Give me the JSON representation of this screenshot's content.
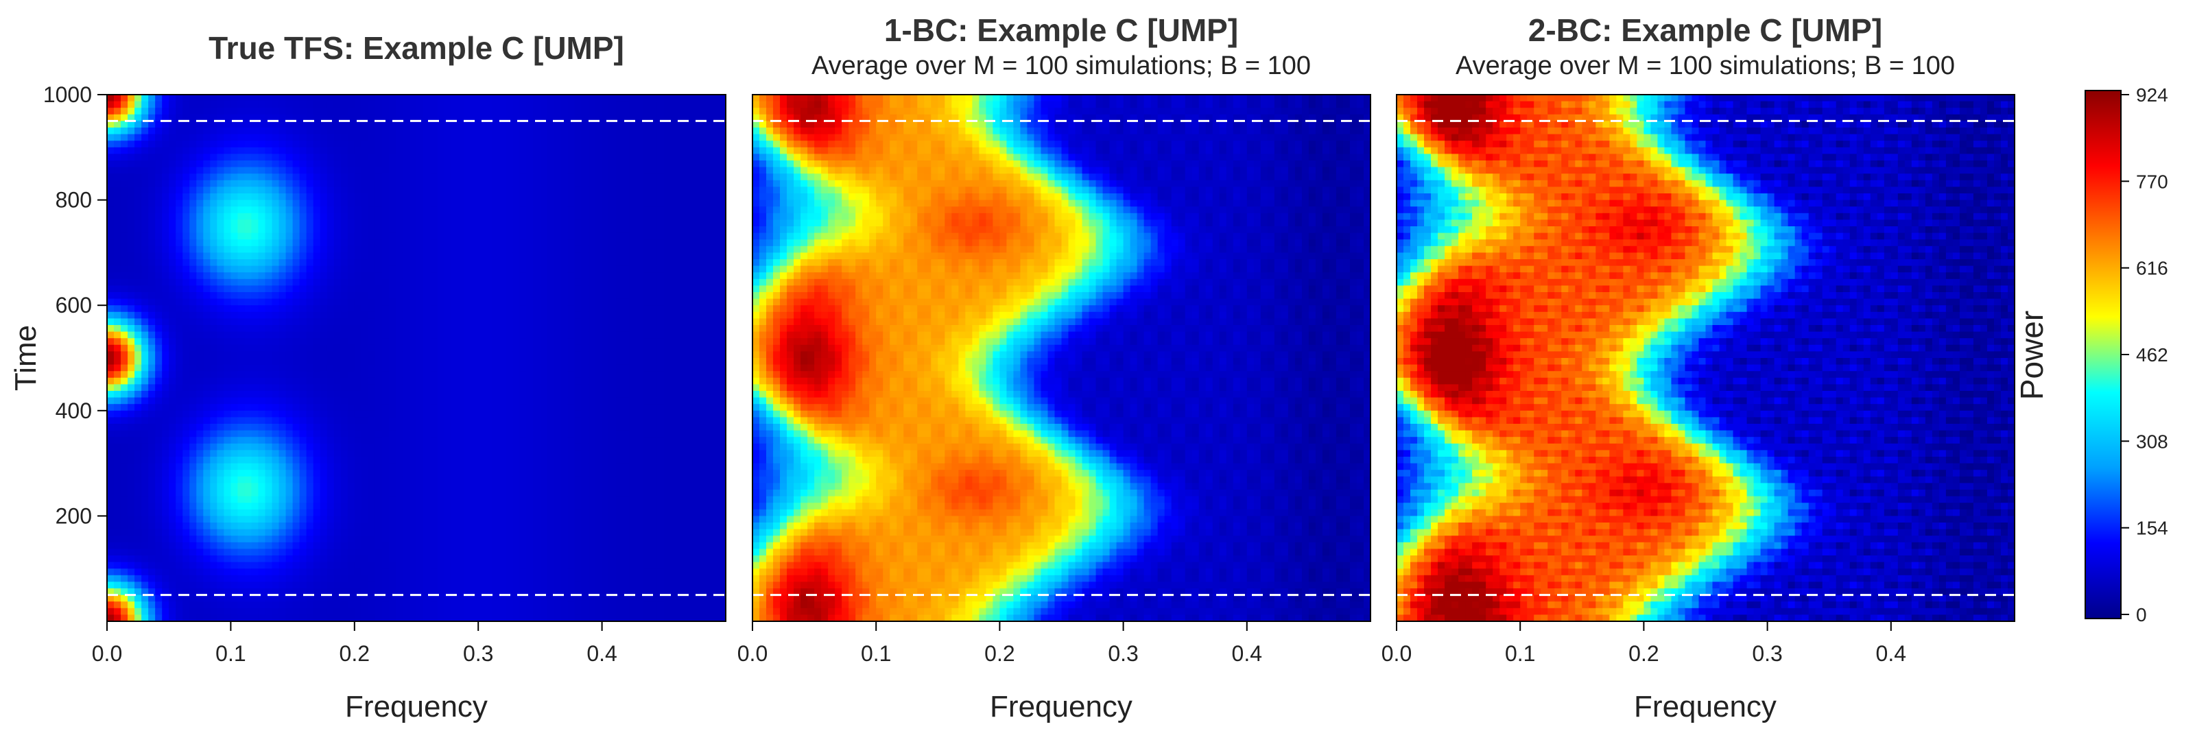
{
  "chart_data": [
    {
      "type": "heatmap",
      "title": "True TFS: Example C   [UMP]",
      "subtitle": "",
      "xlabel": "Frequency",
      "ylabel": "Time",
      "xlim": [
        0,
        0.5
      ],
      "ylim": [
        0,
        1000
      ],
      "xticks": [
        "0.0",
        "0.1",
        "0.2",
        "0.3",
        "0.4"
      ],
      "yticks": [
        "200",
        "400",
        "600",
        "800",
        "1000"
      ],
      "reference_lines_time": [
        50,
        950
      ],
      "peaks": [
        {
          "time": 500,
          "frequency": 0.0,
          "power": 900
        },
        {
          "time": 0,
          "frequency": 0.0,
          "power": 900
        },
        {
          "time": 1000,
          "frequency": 0.0,
          "power": 900
        },
        {
          "time": 250,
          "frequency": 0.11,
          "power": 330
        },
        {
          "time": 750,
          "frequency": 0.11,
          "power": 330
        }
      ]
    },
    {
      "type": "heatmap",
      "title": "1-BC: Example C   [UMP]",
      "subtitle": "Average over M = 100 simulations;  B = 100",
      "xlabel": "Frequency",
      "ylabel": "",
      "xlim": [
        0,
        0.5
      ],
      "ylim": [
        0,
        1000
      ],
      "xticks": [
        "0.0",
        "0.1",
        "0.2",
        "0.3",
        "0.4"
      ],
      "yticks": [],
      "reference_lines_time": [
        50,
        950
      ],
      "peaks": [
        {
          "time": 500,
          "frequency": 0.05,
          "power": 720
        },
        {
          "time": 250,
          "frequency": 0.18,
          "power": 680
        },
        {
          "time": 750,
          "frequency": 0.18,
          "power": 680
        },
        {
          "time": 30,
          "frequency": 0.05,
          "power": 760
        },
        {
          "time": 970,
          "frequency": 0.05,
          "power": 740
        }
      ]
    },
    {
      "type": "heatmap",
      "title": "2-BC: Example C   [UMP]",
      "subtitle": "Average over M = 100 simulations;  B = 100",
      "xlabel": "Frequency",
      "ylabel": "",
      "xlim": [
        0,
        0.5
      ],
      "ylim": [
        0,
        1000
      ],
      "xticks": [
        "0.0",
        "0.1",
        "0.2",
        "0.3",
        "0.4"
      ],
      "yticks": [],
      "reference_lines_time": [
        50,
        950
      ],
      "peaks": [
        {
          "time": 500,
          "frequency": 0.05,
          "power": 800
        },
        {
          "time": 250,
          "frequency": 0.2,
          "power": 780
        },
        {
          "time": 750,
          "frequency": 0.2,
          "power": 780
        },
        {
          "time": 30,
          "frequency": 0.07,
          "power": 900
        },
        {
          "time": 970,
          "frequency": 0.05,
          "power": 820
        }
      ]
    }
  ],
  "colorbar": {
    "label": "Power",
    "range": [
      0,
      924
    ],
    "ticks": [
      "0",
      "154",
      "308",
      "462",
      "616",
      "770",
      "924"
    ],
    "colors": [
      "#00008B",
      "#0000FF",
      "#00A0FF",
      "#00FFFF",
      "#FFFF00",
      "#FF8000",
      "#FF0000",
      "#8B0000"
    ]
  }
}
